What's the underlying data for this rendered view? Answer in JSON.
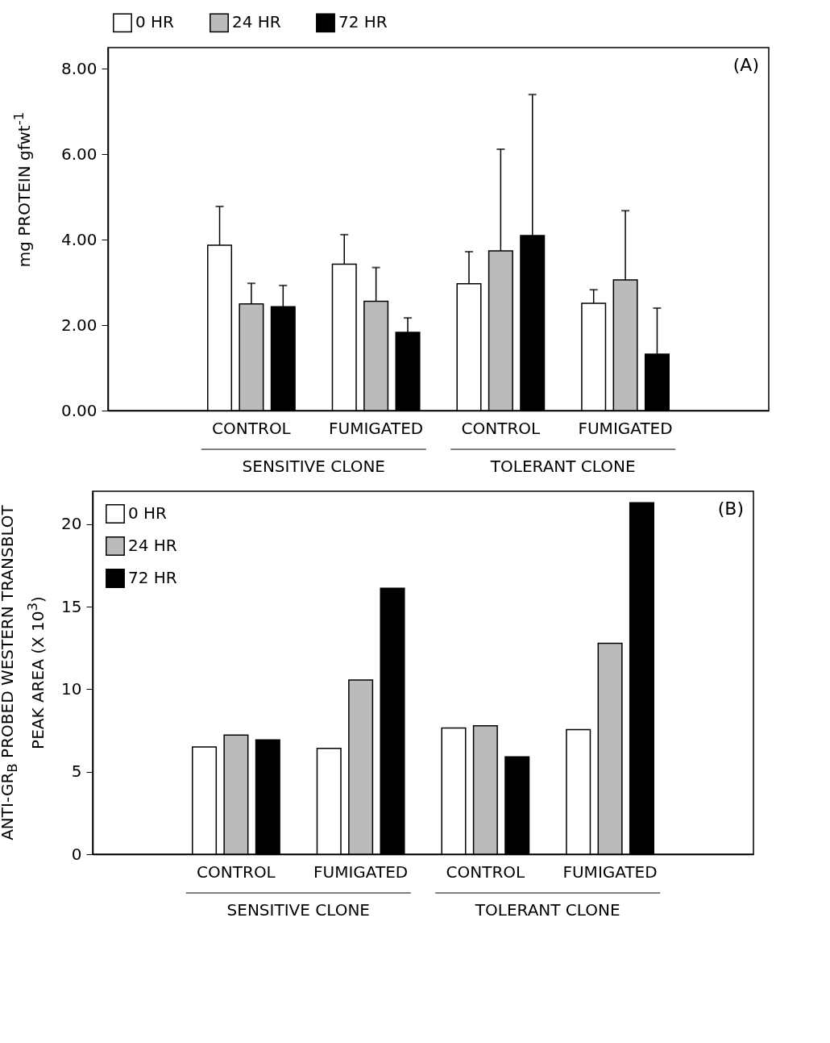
{
  "chart_data": [
    {
      "type": "bar",
      "title": "(A)",
      "ylabel": "mg PROTEIN gfwt$^{-1}$",
      "categories": [
        "CONTROL",
        "FUMIGATED",
        "CONTROL",
        "FUMIGATED"
      ],
      "annotations": [
        "SENSITIVE CLONE",
        "TOLERANT CLONE"
      ],
      "ylim": [
        0,
        8.5
      ],
      "yticks": [
        {
          "value": 0,
          "label": "0.00"
        },
        {
          "value": 2,
          "label": "2.00"
        },
        {
          "value": 4,
          "label": "4.00"
        },
        {
          "value": 6,
          "label": "6.00"
        },
        {
          "value": 8,
          "label": "8.00"
        }
      ],
      "grid": false,
      "legend": "top",
      "series": [
        {
          "name": "0 HR",
          "color": "#ffffff",
          "values": [
            3.87,
            3.43,
            2.97,
            2.51
          ],
          "errors": [
            [
              3.87,
              4.78
            ],
            [
              3.43,
              4.12
            ],
            [
              2.97,
              3.72
            ],
            [
              2.51,
              2.83
            ]
          ]
        },
        {
          "name": "24 HR",
          "color": "#bbbbbb",
          "values": [
            2.5,
            2.56,
            3.74,
            3.06
          ],
          "errors": [
            [
              2.5,
              2.98
            ],
            [
              2.56,
              3.35
            ],
            [
              3.74,
              6.12
            ],
            [
              3.06,
              4.68
            ]
          ]
        },
        {
          "name": "72 HR",
          "color": "#000000",
          "values": [
            2.43,
            1.83,
            4.1,
            1.32
          ],
          "errors": [
            [
              2.43,
              2.93
            ],
            [
              1.83,
              2.17
            ],
            [
              4.1,
              7.4
            ],
            [
              1.32,
              2.4
            ]
          ]
        }
      ]
    },
    {
      "type": "bar",
      "title": "(B)",
      "ylabel": "ANTI-GR$_{B}$ PROBED WESTERN TRANSBLOT\nPEAK AREA (X 10$^{3}$)",
      "categories": [
        "CONTROL",
        "FUMIGATED",
        "CONTROL",
        "FUMIGATED"
      ],
      "annotations": [
        "SENSITIVE CLONE",
        "TOLERANT CLONE"
      ],
      "ylim": [
        0,
        22
      ],
      "yticks": [
        0,
        5,
        10,
        15,
        20
      ],
      "grid": false,
      "legend": "top left",
      "series": [
        {
          "name": "0 HR",
          "color": "#ffffff",
          "values": [
            6.5,
            6.42,
            7.65,
            7.55
          ]
        },
        {
          "name": "24 HR",
          "color": "#bbbbbb",
          "values": [
            7.22,
            10.56,
            7.79,
            12.79
          ]
        },
        {
          "name": "72 HR",
          "color": "#000000",
          "values": [
            6.93,
            16.12,
            5.9,
            21.3
          ]
        }
      ]
    }
  ]
}
